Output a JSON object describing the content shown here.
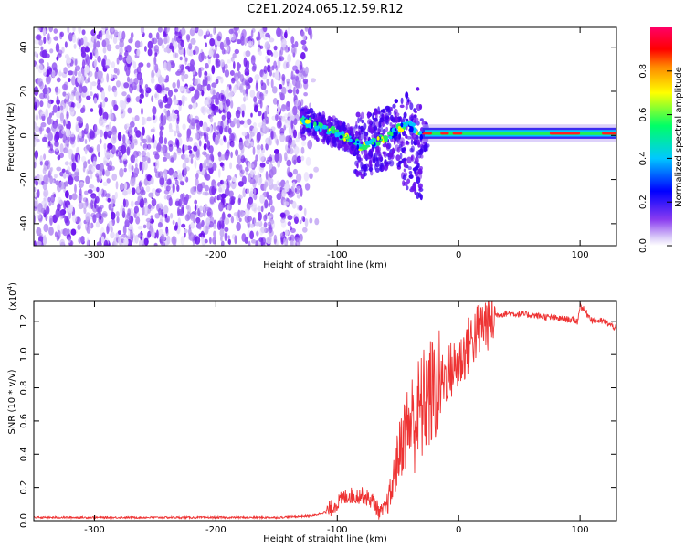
{
  "title": "C2E1.2024.065.12.59.R12",
  "colors": {
    "snr_line": "#ee3333",
    "axis": "#000000"
  },
  "chart_data": [
    {
      "type": "heatmap",
      "xlabel": "Height of straight line (km)",
      "ylabel": "Frequency (Hz)",
      "xlim": [
        -350,
        130
      ],
      "ylim": [
        -50,
        49
      ],
      "x_ticks": [
        -300,
        -200,
        -100,
        0,
        100
      ],
      "y_ticks": [
        -40,
        -20,
        0,
        20,
        40
      ],
      "x_tick_labels": [
        "-300",
        "-200",
        "-100",
        "0",
        "100"
      ],
      "y_tick_labels": [
        "-40",
        "-20",
        "0",
        "20",
        "40"
      ],
      "noise_region_x": [
        -350,
        -125
      ],
      "signal_track": {
        "x": [
          -130,
          -115,
          -100,
          -90,
          -80,
          -70,
          -60,
          -50,
          -40,
          -35,
          -30,
          -20,
          -10,
          0,
          20,
          50,
          80,
          100,
          110,
          120,
          130
        ],
        "y": [
          7,
          4,
          1,
          -2,
          -5,
          -3,
          -1,
          3,
          5,
          2,
          0,
          0,
          1,
          1,
          1,
          1,
          1,
          1,
          0,
          1,
          1
        ]
      },
      "colorbar": {
        "label": "Normalized spectral amplitude",
        "range": [
          0,
          1
        ],
        "ticks": [
          "0.0",
          "0.2",
          "0.4",
          "0.6",
          "0.8"
        ],
        "colormap": [
          "#ffffff",
          "#b89cf0",
          "#7a2af0",
          "#0000ff",
          "#00c8ff",
          "#00ff66",
          "#ffff00",
          "#ff8800",
          "#ff0000",
          "#ff0066"
        ]
      }
    },
    {
      "type": "line",
      "xlabel": "Height of straight line (km)",
      "ylabel": "SNR (10 * v/v)",
      "y_multiplier_label": "(x10",
      "y_multiplier_exp": "4",
      "xlim": [
        -350,
        130
      ],
      "ylim": [
        0,
        1.32
      ],
      "x_ticks": [
        -300,
        -200,
        -100,
        0,
        100
      ],
      "y_ticks": [
        0.0,
        0.2,
        0.4,
        0.6,
        0.8,
        1.0,
        1.2
      ],
      "x_tick_labels": [
        "-300",
        "-200",
        "-100",
        "0",
        "100"
      ],
      "y_tick_labels": [
        "0.0",
        "0.2",
        "0.4",
        "0.6",
        "0.8",
        "1.0",
        "1.2"
      ],
      "series": [
        {
          "x": [
            -350,
            -300,
            -200,
            -150,
            -120,
            -110,
            -100,
            -95,
            -90,
            -85,
            -80,
            -75,
            -70,
            -65,
            -60,
            -55,
            -50,
            -45,
            -40,
            -35,
            -30,
            -25,
            -20,
            -15,
            -10,
            -5,
            0,
            10,
            20,
            30,
            40,
            60,
            80,
            95,
            98,
            100,
            110,
            120,
            130
          ],
          "y": [
            0.02,
            0.02,
            0.02,
            0.02,
            0.03,
            0.05,
            0.11,
            0.14,
            0.16,
            0.15,
            0.16,
            0.14,
            0.12,
            0.05,
            0.08,
            0.2,
            0.4,
            0.55,
            0.62,
            0.65,
            0.72,
            0.78,
            0.82,
            0.85,
            0.9,
            0.93,
            0.96,
            1.1,
            1.2,
            1.24,
            1.25,
            1.24,
            1.22,
            1.21,
            1.2,
            1.3,
            1.21,
            1.2,
            1.16
          ]
        }
      ]
    }
  ]
}
